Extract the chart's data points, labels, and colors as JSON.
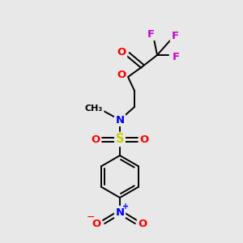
{
  "background_color": "#e8e8e8",
  "bond_color": "#000000",
  "atom_colors": {
    "C": "#000000",
    "O": "#ff0000",
    "N": "#0000ff",
    "S": "#cccc00",
    "F": "#cc00cc"
  },
  "fig_width": 3.0,
  "fig_height": 3.0,
  "dpi": 100,
  "lw": 1.4,
  "fs": 9.5
}
